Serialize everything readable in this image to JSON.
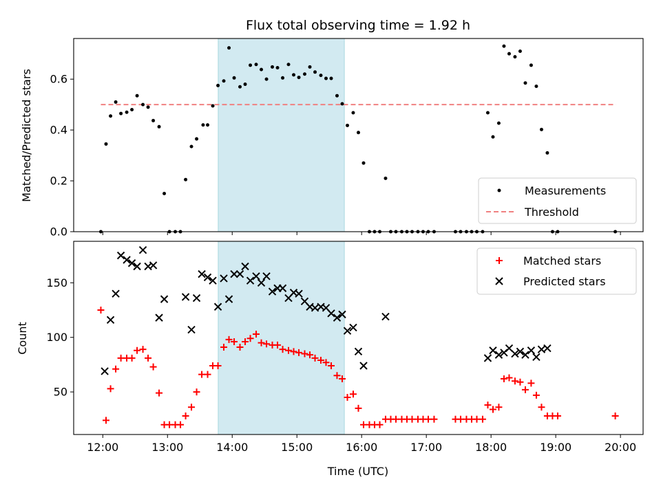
{
  "chart_data": {
    "title": "Flux total observing time = 1.92 h",
    "xlabel": "Time (UTC)",
    "x_unit": "hours UTC",
    "x_ticks": [
      "12:00",
      "13:00",
      "14:00",
      "15:00",
      "16:00",
      "17:00",
      "18:00",
      "19:00",
      "20:00"
    ],
    "highlight_span": {
      "start": "13:47",
      "end": "15:44",
      "color": "#add8e6"
    },
    "panels": [
      {
        "type": "scatter",
        "ylabel": "Matched/Predicted stars",
        "xlim": [
          11.55,
          20.35
        ],
        "ylim": [
          0,
          0.76
        ],
        "y_ticks": [
          "0.0",
          "0.2",
          "0.4",
          "0.6"
        ],
        "legend_position": "bottom-right",
        "threshold": {
          "name": "Threshold",
          "value": 0.5,
          "x_range": [
            11.97,
            19.93
          ],
          "color": "#f08080"
        },
        "series": [
          {
            "name": "Measurements",
            "marker": "dot",
            "color": "#000000",
            "x": [
              11.97,
              12.05,
              12.12,
              12.2,
              12.28,
              12.37,
              12.45,
              12.53,
              12.62,
              12.7,
              12.78,
              12.87,
              12.95,
              13.03,
              13.12,
              13.2,
              13.28,
              13.37,
              13.45,
              13.55,
              13.62,
              13.7,
              13.78,
              13.87,
              13.95,
              14.03,
              14.12,
              14.2,
              14.28,
              14.37,
              14.45,
              14.53,
              14.62,
              14.7,
              14.78,
              14.87,
              14.95,
              15.03,
              15.12,
              15.2,
              15.28,
              15.37,
              15.45,
              15.53,
              15.62,
              15.7,
              15.78,
              15.87,
              15.95,
              16.03,
              16.12,
              16.2,
              16.28,
              16.37,
              16.45,
              16.53,
              16.62,
              16.7,
              16.78,
              16.87,
              16.95,
              17.03,
              17.12,
              17.45,
              17.53,
              17.62,
              17.7,
              17.78,
              17.87,
              17.95,
              18.03,
              18.12,
              18.2,
              18.28,
              18.37,
              18.45,
              18.53,
              18.62,
              18.7,
              18.78,
              18.87,
              18.95,
              19.03,
              19.92
            ],
            "y": [
              0.0,
              0.345,
              0.455,
              0.51,
              0.465,
              0.47,
              0.48,
              0.535,
              0.5,
              0.49,
              0.437,
              0.413,
              0.15,
              0.0,
              0.0,
              0.0,
              0.205,
              0.335,
              0.365,
              0.42,
              0.42,
              0.495,
              0.575,
              0.593,
              0.723,
              0.605,
              0.57,
              0.58,
              0.655,
              0.658,
              0.638,
              0.6,
              0.648,
              0.645,
              0.605,
              0.658,
              0.617,
              0.607,
              0.62,
              0.648,
              0.628,
              0.615,
              0.603,
              0.603,
              0.535,
              0.503,
              0.418,
              0.468,
              0.39,
              0.27,
              0.0,
              0.0,
              0.0,
              0.21,
              0.0,
              0.0,
              0.0,
              0.0,
              0.0,
              0.0,
              0.0,
              0.0,
              0.0,
              0.0,
              0.0,
              0.0,
              0.0,
              0.0,
              0.0,
              0.468,
              0.373,
              0.427,
              0.73,
              0.7,
              0.688,
              0.71,
              0.585,
              0.655,
              0.572,
              0.402,
              0.31,
              0.0,
              0.0,
              0.0
            ]
          }
        ]
      },
      {
        "type": "scatter",
        "ylabel": "Count",
        "xlim": [
          11.55,
          20.35
        ],
        "ylim": [
          11,
          188
        ],
        "y_ticks": [
          "50",
          "100",
          "150"
        ],
        "legend_position": "top-right",
        "series": [
          {
            "name": "Matched stars",
            "marker": "plus",
            "color": "#ff0000",
            "x": [
              11.97,
              12.05,
              12.12,
              12.2,
              12.28,
              12.37,
              12.45,
              12.53,
              12.62,
              12.7,
              12.78,
              12.87,
              12.95,
              13.03,
              13.12,
              13.2,
              13.28,
              13.37,
              13.45,
              13.53,
              13.62,
              13.7,
              13.78,
              13.87,
              13.95,
              14.03,
              14.12,
              14.2,
              14.28,
              14.37,
              14.45,
              14.53,
              14.62,
              14.7,
              14.78,
              14.87,
              14.95,
              15.03,
              15.12,
              15.2,
              15.28,
              15.37,
              15.45,
              15.53,
              15.62,
              15.7,
              15.78,
              15.87,
              15.95,
              16.03,
              16.12,
              16.2,
              16.28,
              16.37,
              16.45,
              16.53,
              16.62,
              16.7,
              16.78,
              16.87,
              16.95,
              17.03,
              17.12,
              17.45,
              17.53,
              17.62,
              17.7,
              17.78,
              17.87,
              17.95,
              18.03,
              18.12,
              18.2,
              18.28,
              18.37,
              18.45,
              18.53,
              18.62,
              18.7,
              18.78,
              18.87,
              18.95,
              19.03,
              19.92
            ],
            "y": [
              125,
              24,
              53,
              71,
              81,
              81,
              81,
              88,
              89,
              81,
              73,
              49,
              20,
              20,
              20,
              20,
              28,
              36,
              50,
              66,
              66,
              74,
              74,
              91,
              98,
              96,
              91,
              96,
              99,
              103,
              95,
              94,
              93,
              93,
              89,
              88,
              87,
              86,
              85,
              84,
              81,
              79,
              77,
              74,
              65,
              62,
              45,
              48,
              35,
              20,
              20,
              20,
              20,
              25,
              25,
              25,
              25,
              25,
              25,
              25,
              25,
              25,
              25,
              25,
              25,
              25,
              25,
              25,
              25,
              38,
              34,
              36,
              62,
              63,
              60,
              59,
              52,
              58,
              47,
              36,
              28,
              28,
              28,
              28
            ]
          },
          {
            "name": "Predicted stars",
            "marker": "x",
            "color": "#000000",
            "x": [
              12.03,
              12.12,
              12.2,
              12.28,
              12.37,
              12.45,
              12.53,
              12.62,
              12.7,
              12.78,
              12.87,
              12.95,
              13.28,
              13.37,
              13.45,
              13.53,
              13.62,
              13.7,
              13.78,
              13.87,
              13.95,
              14.03,
              14.12,
              14.2,
              14.28,
              14.37,
              14.45,
              14.53,
              14.62,
              14.7,
              14.78,
              14.87,
              14.95,
              15.03,
              15.12,
              15.2,
              15.28,
              15.37,
              15.45,
              15.53,
              15.62,
              15.7,
              15.78,
              15.87,
              15.95,
              16.03,
              16.37,
              17.95,
              18.03,
              18.12,
              18.2,
              18.28,
              18.37,
              18.45,
              18.53,
              18.62,
              18.7,
              18.78,
              18.87
            ],
            "y": [
              69,
              116,
              140,
              175,
              171,
              168,
              165,
              180,
              165,
              166,
              118,
              135,
              137,
              107,
              136,
              158,
              155,
              152,
              128,
              154,
              135,
              158,
              158,
              165,
              152,
              156,
              150,
              156,
              142,
              145,
              145,
              136,
              141,
              140,
              133,
              128,
              127,
              128,
              127,
              122,
              118,
              121,
              106,
              109,
              87,
              74,
              119,
              81,
              88,
              84,
              86,
              90,
              85,
              87,
              84,
              88,
              82,
              89,
              90
            ]
          }
        ]
      }
    ]
  }
}
